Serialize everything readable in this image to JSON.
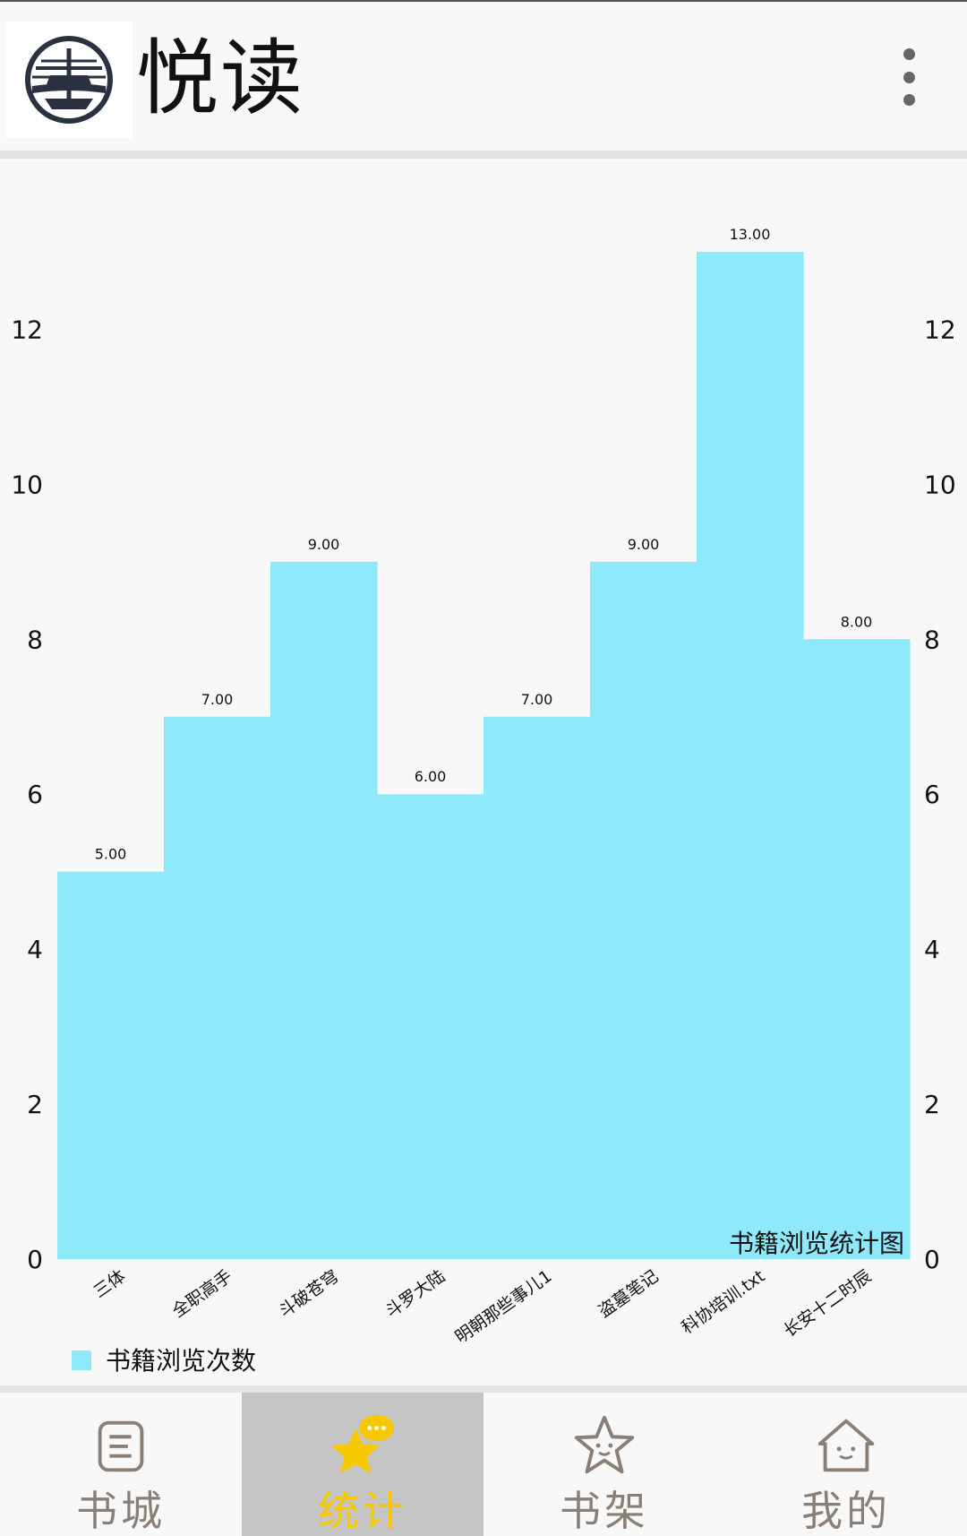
{
  "app": {
    "title": "悦读",
    "logo_icon": "app-logo-icon",
    "menu_icon": "more-vert-icon"
  },
  "chart_data": {
    "type": "bar",
    "title": "书籍浏览统计图",
    "categories": [
      "三体",
      "全职高手",
      "斗破苍穹",
      "斗罗大陆",
      "明朝那些事儿1",
      "盗墓笔记",
      "科协培训.txt",
      "长安十二时辰"
    ],
    "series": [
      {
        "name": "书籍浏览次数",
        "values": [
          5,
          7,
          9,
          6,
          7,
          9,
          13,
          8
        ],
        "value_labels": [
          "5.00",
          "7.00",
          "9.00",
          "6.00",
          "7.00",
          "9.00",
          "13.00",
          "8.00"
        ],
        "color": "#8ee9fb"
      }
    ],
    "ylim": [
      0,
      13
    ],
    "yticks": [
      0,
      2,
      4,
      6,
      8,
      10,
      12
    ],
    "dual_y_axis": true,
    "grid": false,
    "legend_position": "bottom-left",
    "xlabel": "",
    "ylabel": ""
  },
  "nav": {
    "items": [
      {
        "label": "书城",
        "icon": "book-store-icon",
        "active": false
      },
      {
        "label": "统计",
        "icon": "statistics-star-icon",
        "active": true
      },
      {
        "label": "书架",
        "icon": "bookshelf-star-icon",
        "active": false
      },
      {
        "label": "我的",
        "icon": "profile-home-icon",
        "active": false
      }
    ],
    "active_color": "#f5c800",
    "inactive_color": "#8a7f76"
  }
}
